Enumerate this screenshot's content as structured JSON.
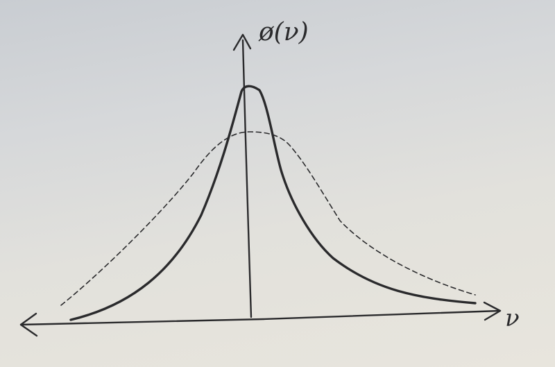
{
  "labels": {
    "y_axis": "ø(ν)",
    "x_axis": "ν"
  },
  "colors": {
    "ink": "#2a2a2c",
    "paper": "#e2e1dc"
  }
}
